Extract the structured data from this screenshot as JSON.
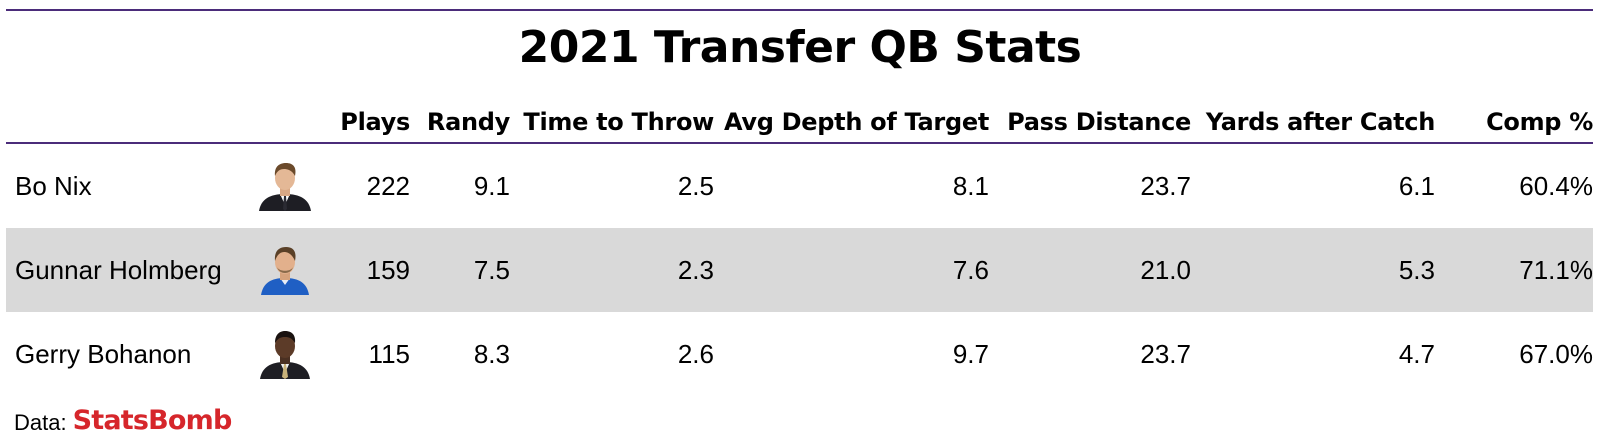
{
  "title": "2021 Transfer QB Stats",
  "columns": {
    "player": "",
    "headshot": "",
    "plays": "Plays",
    "randy": "Randy",
    "time_to_throw": "Time to Throw",
    "avg_depth_of_target": "Avg Depth of Target",
    "pass_distance": "Pass Distance",
    "yards_after_catch": "Yards after Catch",
    "comp_pct": "Comp %"
  },
  "rows": [
    {
      "player": "Bo Nix",
      "headshot_icon": "player-headshot-icon",
      "jersey_color": "#1e1e24",
      "plays": "222",
      "randy": "9.1",
      "time_to_throw": "2.5",
      "avg_depth_of_target": "8.1",
      "pass_distance": "23.7",
      "yards_after_catch": "6.1",
      "comp_pct": "60.4%"
    },
    {
      "player": "Gunnar Holmberg",
      "headshot_icon": "player-headshot-icon",
      "jersey_color": "#1f5fc4",
      "plays": "159",
      "randy": "7.5",
      "time_to_throw": "2.3",
      "avg_depth_of_target": "7.6",
      "pass_distance": "21.0",
      "yards_after_catch": "5.3",
      "comp_pct": "71.1%"
    },
    {
      "player": "Gerry Bohanon",
      "headshot_icon": "player-headshot-icon",
      "jersey_color": "#1e1e24",
      "plays": "115",
      "randy": "8.3",
      "time_to_throw": "2.6",
      "avg_depth_of_target": "9.7",
      "pass_distance": "23.7",
      "yards_after_catch": "4.7",
      "comp_pct": "67.0%"
    }
  ],
  "footer": {
    "data_label": "Data:",
    "source": "StatsBomb"
  },
  "colors": {
    "rule": "#4b2c7a",
    "shaded_row": "#d9d9d9",
    "brand": "#d6262b"
  }
}
